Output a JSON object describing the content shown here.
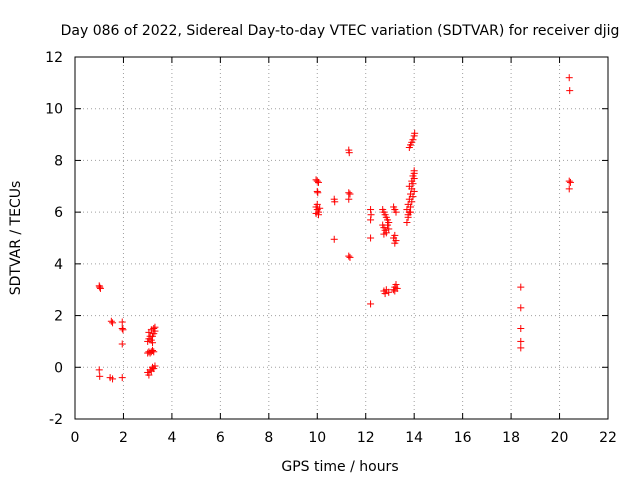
{
  "chart_data": {
    "type": "scatter",
    "title": "Day 086 of 2022, Sidereal Day-to-day VTEC variation (SDTVAR) for receiver djig",
    "xlabel": "GPS time / hours",
    "ylabel": "SDTVAR / TECUs",
    "xlim": [
      0,
      22
    ],
    "ylim": [
      -2,
      12
    ],
    "xticks": [
      0,
      2,
      4,
      6,
      8,
      10,
      12,
      14,
      16,
      18,
      20,
      22
    ],
    "yticks": [
      -2,
      0,
      2,
      4,
      6,
      8,
      10,
      12
    ],
    "grid": true,
    "marker": "+",
    "series": [
      {
        "name": "SDTVAR",
        "color": "#ff0000",
        "points": [
          [
            1.0,
            3.15
          ],
          [
            1.02,
            3.1
          ],
          [
            1.05,
            3.05
          ],
          [
            1.0,
            -0.1
          ],
          [
            1.02,
            -0.35
          ],
          [
            1.5,
            1.78
          ],
          [
            1.55,
            1.72
          ],
          [
            1.45,
            -0.4
          ],
          [
            1.55,
            -0.45
          ],
          [
            1.95,
            1.75
          ],
          [
            1.95,
            1.5
          ],
          [
            1.98,
            1.45
          ],
          [
            1.95,
            0.9
          ],
          [
            1.95,
            -0.4
          ],
          [
            3.0,
            -0.2
          ],
          [
            3.05,
            -0.3
          ],
          [
            3.1,
            -0.1
          ],
          [
            3.15,
            -0.15
          ],
          [
            3.2,
            0.0
          ],
          [
            3.25,
            -0.05
          ],
          [
            3.3,
            0.05
          ],
          [
            3.0,
            0.55
          ],
          [
            3.05,
            0.6
          ],
          [
            3.1,
            0.55
          ],
          [
            3.15,
            0.6
          ],
          [
            3.2,
            0.65
          ],
          [
            3.25,
            0.6
          ],
          [
            3.0,
            1.0
          ],
          [
            3.05,
            1.1
          ],
          [
            3.1,
            1.2
          ],
          [
            3.15,
            1.05
          ],
          [
            3.2,
            0.95
          ],
          [
            3.25,
            1.3
          ],
          [
            3.3,
            1.4
          ],
          [
            3.05,
            1.35
          ],
          [
            3.15,
            1.45
          ],
          [
            3.25,
            1.5
          ],
          [
            3.3,
            1.55
          ],
          [
            3.2,
            1.2
          ],
          [
            9.95,
            7.25
          ],
          [
            10.0,
            7.2
          ],
          [
            10.05,
            7.15
          ],
          [
            10.0,
            6.8
          ],
          [
            10.02,
            6.75
          ],
          [
            9.95,
            6.2
          ],
          [
            10.0,
            6.1
          ],
          [
            10.05,
            6.0
          ],
          [
            10.1,
            6.15
          ],
          [
            9.95,
            5.95
          ],
          [
            10.05,
            5.9
          ],
          [
            10.0,
            6.3
          ],
          [
            10.7,
            6.5
          ],
          [
            10.72,
            6.4
          ],
          [
            10.7,
            4.95
          ],
          [
            11.3,
            8.4
          ],
          [
            11.32,
            8.3
          ],
          [
            11.3,
            6.75
          ],
          [
            11.35,
            6.7
          ],
          [
            11.3,
            6.5
          ],
          [
            11.3,
            4.3
          ],
          [
            11.35,
            4.25
          ],
          [
            12.2,
            6.1
          ],
          [
            12.22,
            5.9
          ],
          [
            12.2,
            5.7
          ],
          [
            12.2,
            5.0
          ],
          [
            12.2,
            2.45
          ],
          [
            12.7,
            6.1
          ],
          [
            12.75,
            6.0
          ],
          [
            12.8,
            5.9
          ],
          [
            12.85,
            5.8
          ],
          [
            12.9,
            5.7
          ],
          [
            12.95,
            5.6
          ],
          [
            12.7,
            5.5
          ],
          [
            12.75,
            5.4
          ],
          [
            12.8,
            5.3
          ],
          [
            12.85,
            5.2
          ],
          [
            12.9,
            5.5
          ],
          [
            12.95,
            5.35
          ],
          [
            12.75,
            5.15
          ],
          [
            12.75,
            2.95
          ],
          [
            12.85,
            3.0
          ],
          [
            12.95,
            2.9
          ],
          [
            12.8,
            2.85
          ],
          [
            13.15,
            6.2
          ],
          [
            13.2,
            6.1
          ],
          [
            13.25,
            6.0
          ],
          [
            13.2,
            5.1
          ],
          [
            13.15,
            5.0
          ],
          [
            13.25,
            4.9
          ],
          [
            13.2,
            4.8
          ],
          [
            13.15,
            3.0
          ],
          [
            13.2,
            3.1
          ],
          [
            13.25,
            3.2
          ],
          [
            13.3,
            3.05
          ],
          [
            13.2,
            2.95
          ],
          [
            13.7,
            5.6
          ],
          [
            13.75,
            5.9
          ],
          [
            13.8,
            6.0
          ],
          [
            13.85,
            6.2
          ],
          [
            13.9,
            6.4
          ],
          [
            13.95,
            6.6
          ],
          [
            14.0,
            6.8
          ],
          [
            13.75,
            6.3
          ],
          [
            13.8,
            6.5
          ],
          [
            13.85,
            6.7
          ],
          [
            13.9,
            6.9
          ],
          [
            13.95,
            7.1
          ],
          [
            14.0,
            7.3
          ],
          [
            14.0,
            7.5
          ],
          [
            13.7,
            6.1
          ],
          [
            13.8,
            7.0
          ],
          [
            13.9,
            7.2
          ],
          [
            13.95,
            7.4
          ],
          [
            14.0,
            7.6
          ],
          [
            13.85,
            6.0
          ],
          [
            13.75,
            5.8
          ],
          [
            13.8,
            8.5
          ],
          [
            13.85,
            8.6
          ],
          [
            13.9,
            8.7
          ],
          [
            13.95,
            8.8
          ],
          [
            14.0,
            8.95
          ],
          [
            14.02,
            9.05
          ],
          [
            18.4,
            3.1
          ],
          [
            18.4,
            2.3
          ],
          [
            18.4,
            1.5
          ],
          [
            18.4,
            1.0
          ],
          [
            18.4,
            0.75
          ],
          [
            20.4,
            11.2
          ],
          [
            20.42,
            10.7
          ],
          [
            20.4,
            7.2
          ],
          [
            20.45,
            7.15
          ],
          [
            20.4,
            6.9
          ]
        ]
      }
    ]
  }
}
